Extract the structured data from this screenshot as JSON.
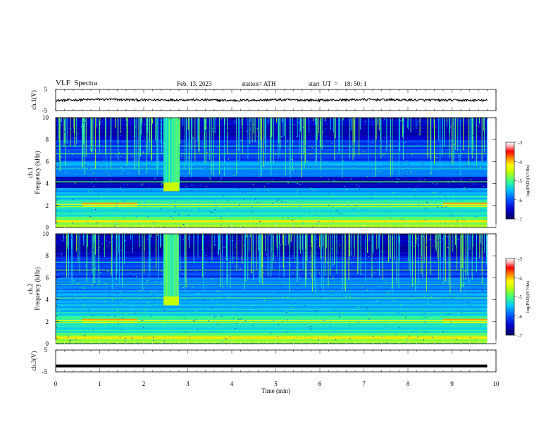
{
  "header": {
    "title": "VLF  Spectra",
    "date": "Feb. 13, 2023",
    "station": "station= ATH",
    "start_ut": "start  UT  =    18: 50: 1"
  },
  "colors": {
    "colormap": [
      "#000060",
      "#0000c8",
      "#0050ff",
      "#00c8ff",
      "#40ff80",
      "#c8ff00",
      "#ffff00",
      "#ff8000",
      "#ff0000",
      "#ffb0b0",
      "#ffffff"
    ]
  },
  "chart_data": [
    {
      "type": "line",
      "panel": "ch1",
      "ylabel": "ch.1(V)",
      "ylim": [
        -5,
        5
      ],
      "yticks": [
        "5",
        "-5"
      ],
      "xlim": [
        0,
        10
      ],
      "series": [
        {
          "x": [
            0,
            1,
            2,
            3,
            4,
            5,
            6,
            7,
            8,
            9,
            9.8
          ],
          "values": [
            -0.2,
            0.3,
            0.0,
            0.1,
            -0.2,
            0.1,
            -0.1,
            0.2,
            0.0,
            -0.1,
            -0.2
          ]
        }
      ]
    },
    {
      "type": "heatmap",
      "panel": "ch2",
      "ylabel": "ch.1",
      "ylabel2": "Frequency  (kHz)",
      "ylim": [
        0,
        10
      ],
      "yticks": [
        "0",
        "2",
        "4",
        "6",
        "8",
        "10"
      ],
      "xlim": [
        0,
        10
      ],
      "data_end_min": 9.8,
      "burst": {
        "t0": 2.45,
        "t1": 2.8,
        "f_low": 3.3
      },
      "colorbar": {
        "label": "log(PSD)(V²/Hz)",
        "range": [
          -7,
          -3
        ],
        "ticks": [
          "-3",
          "-4",
          "-5",
          "-6",
          "-7"
        ]
      }
    },
    {
      "type": "heatmap",
      "panel": "ch3",
      "ylabel": "ch.2",
      "ylabel2": "Frequency  (kHz)",
      "ylim": [
        0,
        10
      ],
      "yticks": [
        "0",
        "2",
        "4",
        "6",
        "8",
        "10"
      ],
      "xlim": [
        0,
        10
      ],
      "data_end_min": 9.8,
      "burst": {
        "t0": 2.45,
        "t1": 2.8,
        "f_low": 3.5
      },
      "colorbar": {
        "label": "log(PSD)(V²/Hz)",
        "range": [
          -7,
          -3
        ],
        "ticks": [
          "-3",
          "-4",
          "-5",
          "-6",
          "-7"
        ]
      }
    },
    {
      "type": "line",
      "panel": "ch4",
      "ylabel": "ch.3(V)",
      "ylim": [
        -5,
        5
      ],
      "yticks": [
        "5",
        "-5"
      ],
      "xlim": [
        0,
        10
      ],
      "xlabel": "Time  (min)",
      "xticks": [
        "0",
        "1",
        "2",
        "3",
        "4",
        "5",
        "6",
        "7",
        "8",
        "9",
        "10"
      ],
      "series": [
        {
          "x": [
            0,
            9.8
          ],
          "values": [
            -2.3,
            -2.3
          ]
        }
      ]
    }
  ]
}
